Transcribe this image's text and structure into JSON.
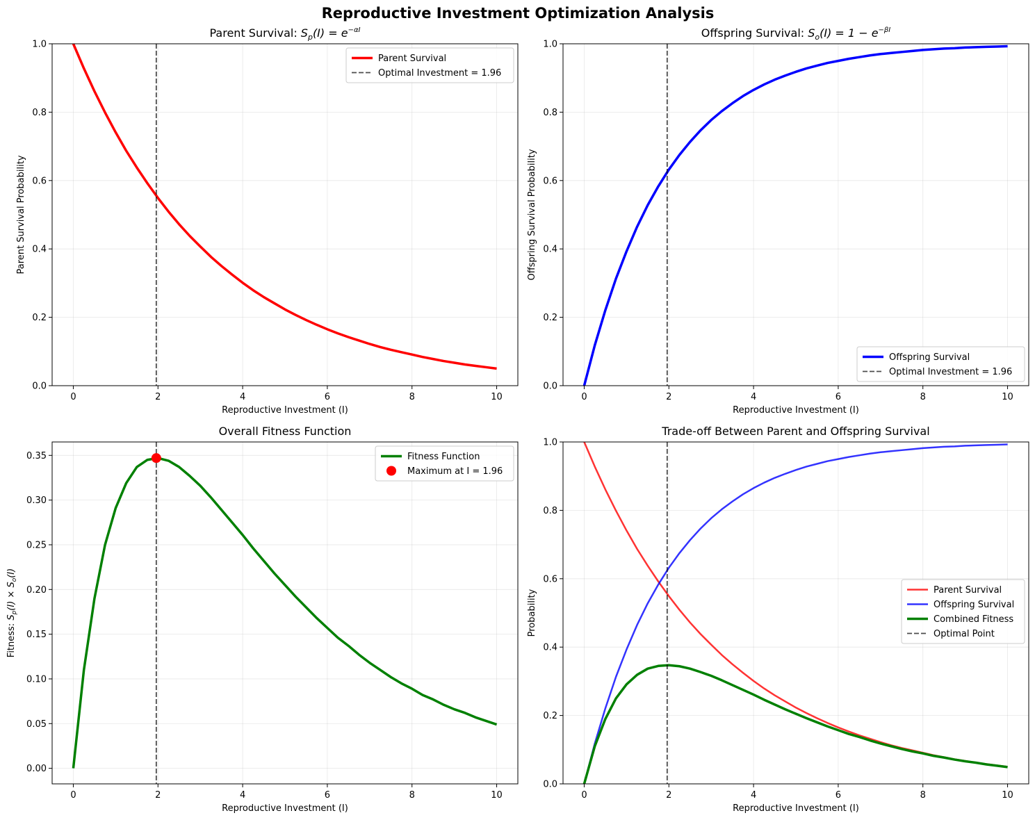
{
  "figure_title": "Reproductive Investment Optimization Analysis",
  "chart_data": [
    {
      "type": "line",
      "title": "Parent Survival: S_p(I) = e^{-αI}",
      "title_prefix": "Parent Survival: ",
      "title_math": {
        "lhs_base": "S",
        "lhs_sub": "p",
        "arg": "(I) = ",
        "rhs_base": "e",
        "rhs_sup": "−αI",
        "rhs_prefix": ""
      },
      "xlabel": "Reproductive Investment (I)",
      "ylabel": "Parent Survival Probability",
      "xlim": [
        -0.5,
        10.5
      ],
      "ylim": [
        0,
        1.0
      ],
      "xticks": [
        0,
        2,
        4,
        6,
        8,
        10
      ],
      "yticks": [
        0.0,
        0.2,
        0.4,
        0.6,
        0.8,
        1.0
      ],
      "ytick_labels": [
        "0.0",
        "0.2",
        "0.4",
        "0.6",
        "0.8",
        "1.0"
      ],
      "grid": true,
      "legend_position": "top-right",
      "series": [
        {
          "name": "Parent Survival",
          "color": "#ff0000",
          "width": 3.5,
          "alpha": 1.0,
          "x": [
            0,
            0.25,
            0.5,
            0.75,
            1,
            1.25,
            1.5,
            1.75,
            2,
            2.25,
            2.5,
            2.75,
            3,
            3.25,
            3.5,
            3.75,
            4,
            4.25,
            4.5,
            4.75,
            5,
            5.25,
            5.5,
            5.75,
            6,
            6.25,
            6.5,
            6.75,
            7,
            7.25,
            7.5,
            7.75,
            8,
            8.25,
            8.5,
            8.75,
            9,
            9.25,
            9.5,
            9.75,
            10
          ],
          "y": [
            1.0,
            0.928,
            0.861,
            0.799,
            0.741,
            0.687,
            0.638,
            0.592,
            0.549,
            0.509,
            0.472,
            0.438,
            0.407,
            0.377,
            0.35,
            0.325,
            0.301,
            0.279,
            0.259,
            0.241,
            0.223,
            0.207,
            0.192,
            0.178,
            0.165,
            0.153,
            0.142,
            0.132,
            0.122,
            0.113,
            0.105,
            0.098,
            0.091,
            0.084,
            0.078,
            0.072,
            0.067,
            0.062,
            0.058,
            0.054,
            0.05
          ]
        }
      ],
      "vline": {
        "x": 1.96,
        "name": "Optimal Investment = 1.96",
        "color": "#000000"
      },
      "legend": [
        {
          "label": "Parent Survival",
          "kind": "line",
          "color": "#ff0000"
        },
        {
          "label": "Optimal Investment = 1.96",
          "kind": "dash",
          "color": "#000000"
        }
      ]
    },
    {
      "type": "line",
      "title": "Offspring Survival: S_o(I) = 1 - e^{-βI}",
      "title_prefix": "Offspring Survival: ",
      "title_math": {
        "lhs_base": "S",
        "lhs_sub": "o",
        "arg": "(I) = ",
        "rhs_base": "e",
        "rhs_sup": "−βI",
        "rhs_prefix": "1 − "
      },
      "xlabel": "Reproductive Investment (I)",
      "ylabel": "Offspring Survival Probability",
      "xlim": [
        -0.5,
        10.5
      ],
      "ylim": [
        0,
        1.0
      ],
      "xticks": [
        0,
        2,
        4,
        6,
        8,
        10
      ],
      "yticks": [
        0.0,
        0.2,
        0.4,
        0.6,
        0.8,
        1.0
      ],
      "ytick_labels": [
        "0.0",
        "0.2",
        "0.4",
        "0.6",
        "0.8",
        "1.0"
      ],
      "grid": true,
      "legend_position": "bottom-right",
      "series": [
        {
          "name": "Offspring Survival",
          "color": "#0000ff",
          "width": 3.5,
          "alpha": 1.0,
          "x": [
            0,
            0.25,
            0.5,
            0.75,
            1,
            1.25,
            1.5,
            1.75,
            2,
            2.25,
            2.5,
            2.75,
            3,
            3.25,
            3.5,
            3.75,
            4,
            4.25,
            4.5,
            4.75,
            5,
            5.25,
            5.5,
            5.75,
            6,
            6.25,
            6.5,
            6.75,
            7,
            7.25,
            7.5,
            7.75,
            8,
            8.25,
            8.5,
            8.75,
            9,
            9.25,
            9.5,
            9.75,
            10
          ],
          "y": [
            0.0,
            0.118,
            0.221,
            0.313,
            0.393,
            0.465,
            0.528,
            0.583,
            0.632,
            0.675,
            0.713,
            0.747,
            0.777,
            0.803,
            0.826,
            0.847,
            0.865,
            0.881,
            0.895,
            0.907,
            0.918,
            0.928,
            0.936,
            0.944,
            0.95,
            0.956,
            0.961,
            0.966,
            0.97,
            0.973,
            0.976,
            0.979,
            0.982,
            0.984,
            0.986,
            0.987,
            0.989,
            0.99,
            0.991,
            0.992,
            0.993
          ]
        }
      ],
      "vline": {
        "x": 1.96,
        "name": "Optimal Investment = 1.96",
        "color": "#000000"
      },
      "legend": [
        {
          "label": "Offspring Survival",
          "kind": "line",
          "color": "#0000ff"
        },
        {
          "label": "Optimal Investment = 1.96",
          "kind": "dash",
          "color": "#000000"
        }
      ]
    },
    {
      "type": "line",
      "title": "Overall Fitness Function",
      "xlabel": "Reproductive Investment (I)",
      "ylabel": "Fitness: S_p(I) × S_o(I)",
      "ylabel_math": true,
      "xlim": [
        -0.5,
        10.5
      ],
      "ylim": [
        -0.0174,
        0.365
      ],
      "xticks": [
        0,
        2,
        4,
        6,
        8,
        10
      ],
      "yticks": [
        0.0,
        0.05,
        0.1,
        0.15,
        0.2,
        0.25,
        0.3,
        0.35
      ],
      "ytick_labels": [
        "0.00",
        "0.05",
        "0.10",
        "0.15",
        "0.20",
        "0.25",
        "0.30",
        "0.35"
      ],
      "grid": true,
      "legend_position": "top-right",
      "series": [
        {
          "name": "Fitness Function",
          "color": "#008000",
          "width": 3.5,
          "alpha": 1.0,
          "x": [
            0,
            0.25,
            0.5,
            0.75,
            1,
            1.25,
            1.5,
            1.75,
            2,
            2.25,
            2.5,
            2.75,
            3,
            3.25,
            3.5,
            3.75,
            4,
            4.25,
            4.5,
            4.75,
            5,
            5.25,
            5.5,
            5.75,
            6,
            6.25,
            6.5,
            6.75,
            7,
            7.25,
            7.5,
            7.75,
            8,
            8.25,
            8.5,
            8.75,
            9,
            9.25,
            9.5,
            9.75,
            10
          ],
          "y": [
            0.0,
            0.11,
            0.19,
            0.25,
            0.291,
            0.319,
            0.337,
            0.345,
            0.347,
            0.344,
            0.337,
            0.327,
            0.316,
            0.303,
            0.289,
            0.275,
            0.261,
            0.246,
            0.232,
            0.218,
            0.205,
            0.192,
            0.18,
            0.168,
            0.157,
            0.146,
            0.137,
            0.127,
            0.118,
            0.11,
            0.102,
            0.095,
            0.089,
            0.082,
            0.077,
            0.071,
            0.066,
            0.062,
            0.057,
            0.053,
            0.049
          ]
        }
      ],
      "vline": {
        "x": 1.96,
        "color": "#000000"
      },
      "marker": {
        "x": 1.96,
        "y": 0.347,
        "name": "Maximum at I = 1.96",
        "color": "#ff0000"
      },
      "legend": [
        {
          "label": "Fitness Function",
          "kind": "line",
          "color": "#008000"
        },
        {
          "label": "Maximum at I = 1.96",
          "kind": "dot",
          "color": "#ff0000"
        }
      ]
    },
    {
      "type": "line",
      "title": "Trade-off Between Parent and Offspring Survival",
      "xlabel": "Reproductive Investment (I)",
      "ylabel": "Probability",
      "xlim": [
        -0.5,
        10.5
      ],
      "ylim": [
        0,
        1.0
      ],
      "xticks": [
        0,
        2,
        4,
        6,
        8,
        10
      ],
      "yticks": [
        0.0,
        0.2,
        0.4,
        0.6,
        0.8,
        1.0
      ],
      "ytick_labels": [
        "0.0",
        "0.2",
        "0.4",
        "0.6",
        "0.8",
        "1.0"
      ],
      "grid": true,
      "legend_position": "center-right",
      "series": [
        {
          "name": "Parent Survival",
          "color": "#ff0000",
          "width": 2.5,
          "alpha": 0.8,
          "x": [
            0,
            0.25,
            0.5,
            0.75,
            1,
            1.25,
            1.5,
            1.75,
            2,
            2.25,
            2.5,
            2.75,
            3,
            3.25,
            3.5,
            3.75,
            4,
            4.25,
            4.5,
            4.75,
            5,
            5.25,
            5.5,
            5.75,
            6,
            6.25,
            6.5,
            6.75,
            7,
            7.25,
            7.5,
            7.75,
            8,
            8.25,
            8.5,
            8.75,
            9,
            9.25,
            9.5,
            9.75,
            10
          ],
          "y": [
            1.0,
            0.928,
            0.861,
            0.799,
            0.741,
            0.687,
            0.638,
            0.592,
            0.549,
            0.509,
            0.472,
            0.438,
            0.407,
            0.377,
            0.35,
            0.325,
            0.301,
            0.279,
            0.259,
            0.241,
            0.223,
            0.207,
            0.192,
            0.178,
            0.165,
            0.153,
            0.142,
            0.132,
            0.122,
            0.113,
            0.105,
            0.098,
            0.091,
            0.084,
            0.078,
            0.072,
            0.067,
            0.062,
            0.058,
            0.054,
            0.05
          ]
        },
        {
          "name": "Offspring Survival",
          "color": "#0000ff",
          "width": 2.5,
          "alpha": 0.8,
          "x": [
            0,
            0.25,
            0.5,
            0.75,
            1,
            1.25,
            1.5,
            1.75,
            2,
            2.25,
            2.5,
            2.75,
            3,
            3.25,
            3.5,
            3.75,
            4,
            4.25,
            4.5,
            4.75,
            5,
            5.25,
            5.5,
            5.75,
            6,
            6.25,
            6.5,
            6.75,
            7,
            7.25,
            7.5,
            7.75,
            8,
            8.25,
            8.5,
            8.75,
            9,
            9.25,
            9.5,
            9.75,
            10
          ],
          "y": [
            0.0,
            0.118,
            0.221,
            0.313,
            0.393,
            0.465,
            0.528,
            0.583,
            0.632,
            0.675,
            0.713,
            0.747,
            0.777,
            0.803,
            0.826,
            0.847,
            0.865,
            0.881,
            0.895,
            0.907,
            0.918,
            0.928,
            0.936,
            0.944,
            0.95,
            0.956,
            0.961,
            0.966,
            0.97,
            0.973,
            0.976,
            0.979,
            0.982,
            0.984,
            0.986,
            0.987,
            0.989,
            0.99,
            0.991,
            0.992,
            0.993
          ]
        },
        {
          "name": "Combined Fitness",
          "color": "#008000",
          "width": 3.5,
          "alpha": 1.0,
          "x": [
            0,
            0.25,
            0.5,
            0.75,
            1,
            1.25,
            1.5,
            1.75,
            2,
            2.25,
            2.5,
            2.75,
            3,
            3.25,
            3.5,
            3.75,
            4,
            4.25,
            4.5,
            4.75,
            5,
            5.25,
            5.5,
            5.75,
            6,
            6.25,
            6.5,
            6.75,
            7,
            7.25,
            7.5,
            7.75,
            8,
            8.25,
            8.5,
            8.75,
            9,
            9.25,
            9.5,
            9.75,
            10
          ],
          "y": [
            0.0,
            0.11,
            0.19,
            0.25,
            0.291,
            0.319,
            0.337,
            0.345,
            0.347,
            0.344,
            0.337,
            0.327,
            0.316,
            0.303,
            0.289,
            0.275,
            0.261,
            0.246,
            0.232,
            0.218,
            0.205,
            0.192,
            0.18,
            0.168,
            0.157,
            0.146,
            0.137,
            0.127,
            0.118,
            0.11,
            0.102,
            0.095,
            0.089,
            0.082,
            0.077,
            0.071,
            0.066,
            0.062,
            0.057,
            0.053,
            0.049
          ]
        }
      ],
      "vline": {
        "x": 1.96,
        "name": "Optimal Point",
        "color": "#000000"
      },
      "legend": [
        {
          "label": "Parent Survival",
          "kind": "line",
          "color": "#ff0000"
        },
        {
          "label": "Offspring Survival",
          "kind": "line",
          "color": "#0000ff"
        },
        {
          "label": "Combined Fitness",
          "kind": "line",
          "color": "#008000"
        },
        {
          "label": "Optimal Point",
          "kind": "dash",
          "color": "#000000"
        }
      ]
    }
  ]
}
